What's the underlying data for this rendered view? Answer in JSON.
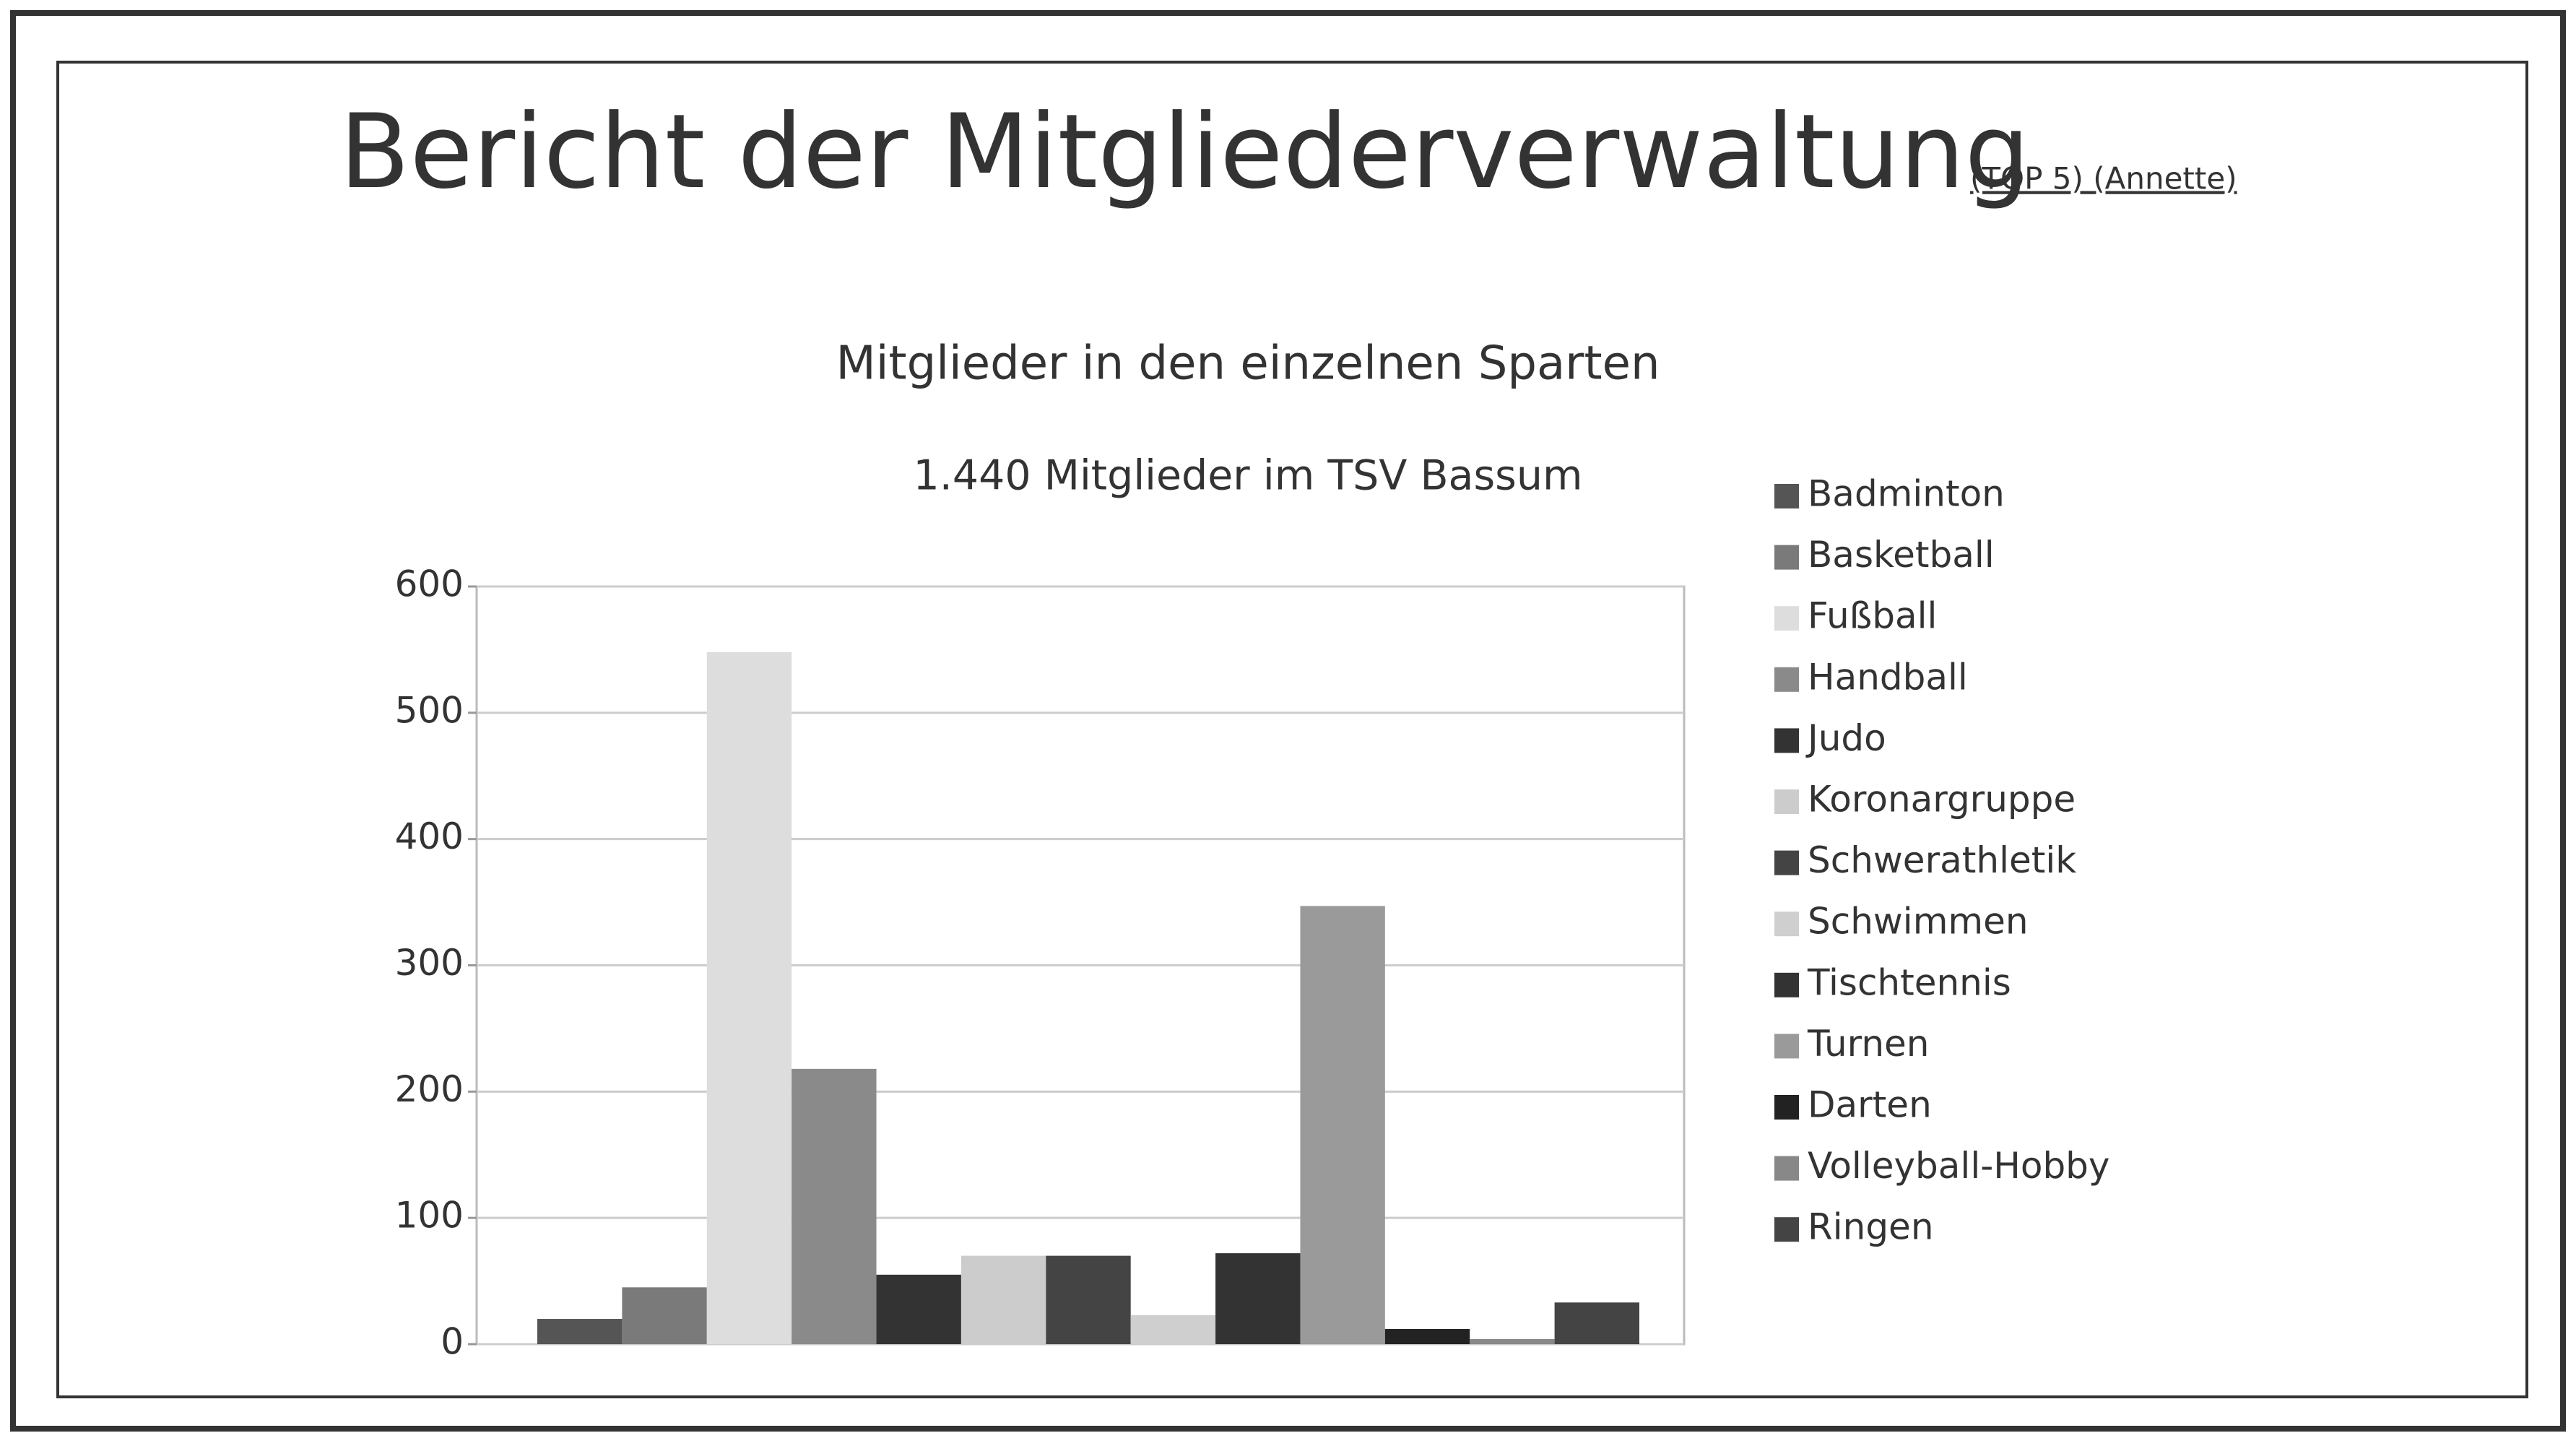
{
  "header": {
    "title": "Bericht der Mitgliederverwaltung",
    "note": "(TOP 5) (Annette)"
  },
  "chart_data": {
    "type": "bar",
    "title": "Mitglieder in den einzelnen Sparten",
    "subtitle": "1.440 Mitglieder im TSV Bassum",
    "categories": [
      "Badminton",
      "Basketball",
      "Fußball",
      "Handball",
      "Judo",
      "Koronargruppe",
      "Schwerathletik",
      "Schwimmen",
      "Tischtennis",
      "Turnen",
      "Darten",
      "Volleyball-Hobby",
      "Ringen"
    ],
    "values": [
      20,
      45,
      548,
      218,
      55,
      70,
      70,
      23,
      72,
      347,
      12,
      4,
      33
    ],
    "colors": [
      "#555555",
      "#7a7a7a",
      "#dddddd",
      "#8a8a8a",
      "#333333",
      "#cccccc",
      "#444444",
      "#cfcfcf",
      "#333333",
      "#9a9a9a",
      "#222222",
      "#888888",
      "#444444"
    ],
    "ylim": [
      0,
      600
    ],
    "yticks": [
      0,
      100,
      200,
      300,
      400,
      500,
      600
    ],
    "grid": true,
    "legend": "right"
  }
}
